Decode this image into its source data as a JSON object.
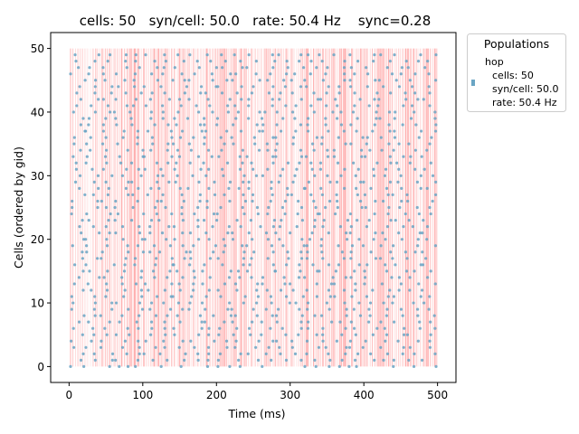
{
  "chart_data": {
    "type": "scatter",
    "title": "cells: 50   syn/cell: 50.0   rate: 50.4 Hz    sync=0.28",
    "xlabel": "Time (ms)",
    "ylabel": "Cells (ordered by gid)",
    "xlim": [
      -25,
      525
    ],
    "ylim": [
      -2.5,
      52.5
    ],
    "xticks": [
      0,
      100,
      200,
      300,
      400,
      500
    ],
    "yticks": [
      0,
      10,
      20,
      30,
      40,
      50
    ],
    "grid": false,
    "legend": {
      "title": "Populations",
      "placement": "outside upper right",
      "entries": [
        {
          "name": "hop",
          "lines": [
            "cells: 50",
            "syn/cell: 50.0",
            "rate: 50.4 Hz"
          ],
          "color": "#6aa5c4"
        }
      ]
    },
    "series": [
      {
        "name": "hop",
        "color": "#6aa5c4",
        "marker_size": 1.6,
        "cells": 50,
        "rate_hz": 50.4,
        "time_range_ms": [
          0,
          500
        ],
        "bottom_row_spike_times_ms": [
          2,
          20,
          55,
          68,
          80,
          90,
          125,
          152,
          188,
          202,
          218,
          232,
          262,
          320,
          335,
          353,
          367,
          380,
          390,
          440,
          468,
          498
        ]
      }
    ],
    "sync_bands": {
      "color": "#ff6b6b",
      "opacity_range": [
        0.12,
        0.55
      ],
      "y_range": [
        0,
        50
      ],
      "time_range_ms": [
        2,
        500
      ]
    }
  }
}
